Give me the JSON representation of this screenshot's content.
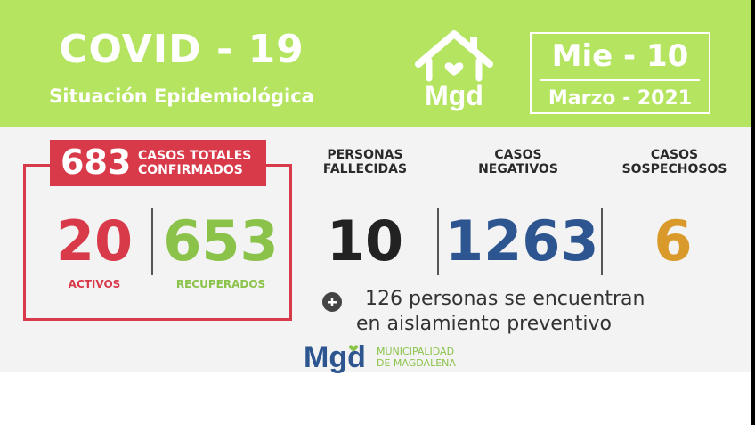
{
  "header": {
    "title": "COVID - 19",
    "subtitle": "Situación Epidemiológica",
    "logo_text": "Mgd",
    "date": {
      "day": "Mie - 10",
      "month_year": "Marzo - 2021"
    }
  },
  "totals": {
    "value": "683",
    "label_line1": "CASOS TOTALES",
    "label_line2": "CONFIRMADOS"
  },
  "stats": {
    "activos": {
      "value": "20",
      "label": "ACTIVOS"
    },
    "recuperados": {
      "value": "653",
      "label": "RECUPERADOS"
    },
    "fallecidas": {
      "value": "10",
      "label_line1": "PERSONAS",
      "label_line2": "FALLECIDAS"
    },
    "negativos": {
      "value": "1263",
      "label_line1": "CASOS",
      "label_line2": "NEGATIVOS"
    },
    "sospechosos": {
      "value": "6",
      "label_line1": "CASOS",
      "label_line2": "SOSPECHOSOS"
    }
  },
  "note": {
    "line1": "126 personas se encuentran",
    "line2": "en aislamiento preventivo"
  },
  "footer": {
    "logo_text": "Mgd",
    "line1": "MUNICIPALIDAD",
    "line2": "DE MAGDALENA"
  },
  "colors": {
    "header_bg": "#b5e461",
    "red": "#d83a4a",
    "green": "#8bc34a",
    "blue": "#2d5590",
    "orange": "#d99a2b",
    "dark": "#222222"
  },
  "icons": {
    "house": "house-heart-icon",
    "plus": "plus-circle-icon"
  }
}
